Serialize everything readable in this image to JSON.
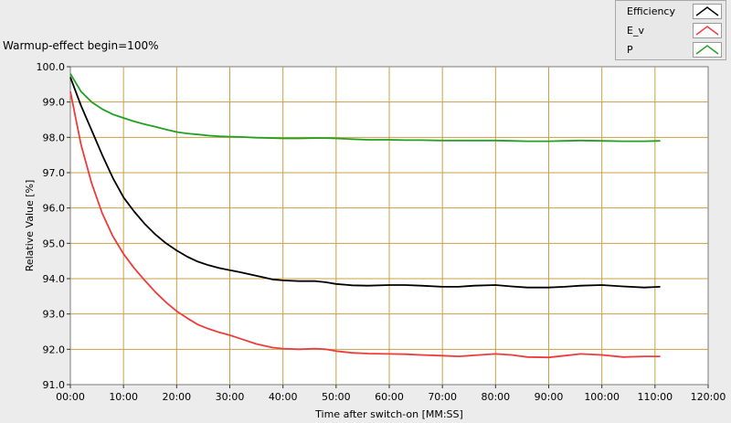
{
  "chart_data": {
    "type": "line",
    "title": "Warmup-effect begin=100%",
    "xlabel": "Time after switch-on [MM:SS]",
    "ylabel": "Relative Value [%]",
    "xlim": [
      0,
      120
    ],
    "ylim": [
      91,
      100
    ],
    "x_ticks": [
      0,
      10,
      20,
      30,
      40,
      50,
      60,
      70,
      80,
      90,
      100,
      110,
      120
    ],
    "x_tick_labels": [
      "00:00",
      "10:00",
      "20:00",
      "30:00",
      "40:00",
      "50:00",
      "60:00",
      "70:00",
      "80:00",
      "90:00",
      "100:00",
      "110:00",
      "120:00"
    ],
    "y_ticks": [
      91,
      92,
      93,
      94,
      95,
      96,
      97,
      98,
      99,
      100
    ],
    "y_tick_labels": [
      "91.0",
      "92.0",
      "93.0",
      "94.0",
      "95.0",
      "96.0",
      "97.0",
      "98.0",
      "99.0",
      "100.0"
    ],
    "grid": true,
    "legend_position": "top-right",
    "series": [
      {
        "name": "Efficiency",
        "color": "#000000",
        "x": [
          0,
          2,
          4,
          6,
          8,
          10,
          12,
          14,
          16,
          18,
          20,
          22,
          24,
          26,
          28,
          30,
          32,
          35,
          38,
          40,
          43,
          46,
          48,
          50,
          53,
          56,
          60,
          63,
          66,
          70,
          73,
          76,
          80,
          83,
          86,
          90,
          93,
          96,
          100,
          104,
          108,
          111
        ],
        "y": [
          99.7,
          98.9,
          98.2,
          97.5,
          96.85,
          96.3,
          95.9,
          95.55,
          95.25,
          95.0,
          94.8,
          94.62,
          94.48,
          94.38,
          94.3,
          94.24,
          94.18,
          94.08,
          93.98,
          93.95,
          93.93,
          93.93,
          93.9,
          93.85,
          93.81,
          93.8,
          93.82,
          93.82,
          93.8,
          93.77,
          93.77,
          93.8,
          93.82,
          93.78,
          93.75,
          93.75,
          93.77,
          93.8,
          93.82,
          93.78,
          93.75,
          93.77
        ]
      },
      {
        "name": "E_v",
        "color": "#ee3b3b",
        "x": [
          0,
          2,
          4,
          6,
          8,
          10,
          12,
          14,
          16,
          18,
          20,
          22,
          24,
          26,
          28,
          30,
          32,
          35,
          38,
          40,
          43,
          46,
          48,
          50,
          53,
          56,
          60,
          63,
          66,
          70,
          73,
          76,
          80,
          83,
          86,
          90,
          93,
          96,
          100,
          104,
          108,
          111
        ],
        "y": [
          99.3,
          97.8,
          96.7,
          95.85,
          95.2,
          94.7,
          94.3,
          93.95,
          93.62,
          93.33,
          93.08,
          92.88,
          92.7,
          92.58,
          92.48,
          92.4,
          92.3,
          92.15,
          92.05,
          92.02,
          92.0,
          92.02,
          92.0,
          91.95,
          91.9,
          91.88,
          91.87,
          91.86,
          91.84,
          91.82,
          91.8,
          91.83,
          91.87,
          91.84,
          91.78,
          91.77,
          91.82,
          91.87,
          91.84,
          91.78,
          91.8,
          91.8
        ]
      },
      {
        "name": "P",
        "color": "#22a022",
        "x": [
          0,
          2,
          4,
          6,
          8,
          10,
          12,
          14,
          16,
          18,
          20,
          22,
          24,
          26,
          28,
          30,
          32,
          35,
          38,
          40,
          43,
          46,
          48,
          50,
          53,
          56,
          60,
          63,
          66,
          70,
          73,
          76,
          80,
          83,
          86,
          90,
          93,
          96,
          100,
          104,
          108,
          111
        ],
        "y": [
          99.8,
          99.3,
          99.0,
          98.8,
          98.65,
          98.55,
          98.45,
          98.37,
          98.3,
          98.22,
          98.15,
          98.11,
          98.08,
          98.05,
          98.03,
          98.02,
          98.01,
          97.99,
          97.98,
          97.97,
          97.97,
          97.98,
          97.98,
          97.97,
          97.95,
          97.93,
          97.93,
          97.92,
          97.92,
          97.91,
          97.91,
          97.91,
          97.91,
          97.9,
          97.89,
          97.89,
          97.9,
          97.91,
          97.9,
          97.89,
          97.89,
          97.9
        ]
      }
    ]
  }
}
